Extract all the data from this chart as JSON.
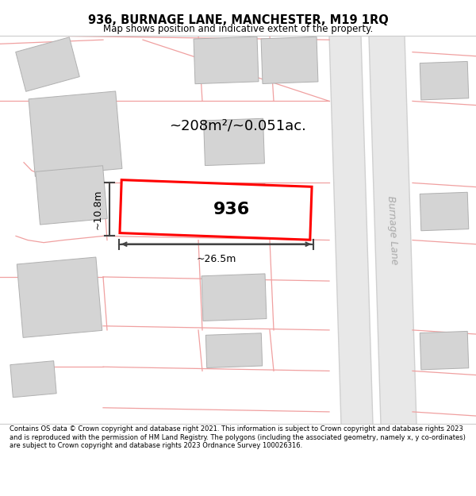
{
  "title_line1": "936, BURNAGE LANE, MANCHESTER, M19 1RQ",
  "title_line2": "Map shows position and indicative extent of the property.",
  "footer_text": "Contains OS data © Crown copyright and database right 2021. This information is subject to Crown copyright and database rights 2023 and is reproduced with the permission of HM Land Registry. The polygons (including the associated geometry, namely x, y co-ordinates) are subject to Crown copyright and database rights 2023 Ordnance Survey 100026316.",
  "background_color": "#ffffff",
  "map_background": "#f8f8f8",
  "building_fill": "#d4d4d4",
  "building_edge": "#b0b0b0",
  "highlight_fill": "#ffffff",
  "highlight_edge": "#ff0000",
  "plot_line_color": "#f0a0a0",
  "road_label": "Burnage Lane",
  "area_text": "~208m²/~0.051ac.",
  "property_label": "936",
  "dim_width": "~26.5m",
  "dim_height": "~10.8m",
  "road_fill": "#e8e8e8",
  "road_line_color": "#d0d0d0"
}
